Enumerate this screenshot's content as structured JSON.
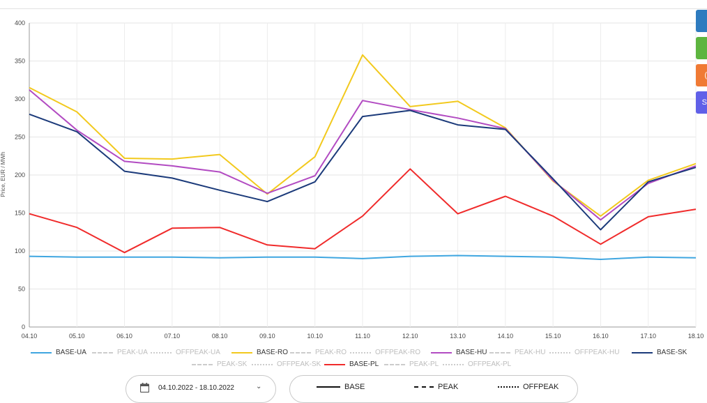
{
  "chart_data": {
    "type": "line",
    "ylabel": "Price, EUR / MWh",
    "ylim": [
      0,
      400
    ],
    "yticks": [
      0,
      50,
      100,
      150,
      200,
      250,
      300,
      350,
      400
    ],
    "categories": [
      "04.10",
      "05.10",
      "06.10",
      "07.10",
      "08.10",
      "09.10",
      "10.10",
      "11.10",
      "12.10",
      "13.10",
      "14.10",
      "15.10",
      "16.10",
      "17.10",
      "18.10"
    ],
    "grid": true,
    "legend_position": "bottom",
    "series": [
      {
        "name": "BASE-UA",
        "color": "#3fa6e0",
        "values": [
          93,
          92,
          92,
          92,
          91,
          92,
          92,
          90,
          93,
          94,
          93,
          92,
          89,
          92,
          91
        ]
      },
      {
        "name": "BASE-RO",
        "color": "#f2c91d",
        "values": [
          315,
          283,
          222,
          221,
          227,
          175,
          224,
          358,
          290,
          297,
          262,
          192,
          146,
          193,
          215
        ]
      },
      {
        "name": "BASE-HU",
        "color": "#b24bc2",
        "values": [
          312,
          259,
          218,
          212,
          204,
          176,
          199,
          298,
          286,
          275,
          261,
          193,
          141,
          189,
          212
        ]
      },
      {
        "name": "BASE-SK",
        "color": "#1b3a7a",
        "values": [
          280,
          257,
          205,
          196,
          180,
          165,
          191,
          277,
          285,
          266,
          260,
          195,
          128,
          191,
          210
        ]
      },
      {
        "name": "BASE-PL",
        "color": "#f02b2b",
        "values": [
          149,
          131,
          98,
          130,
          131,
          108,
          103,
          146,
          208,
          149,
          172,
          146,
          109,
          145,
          155
        ]
      }
    ]
  },
  "legend": {
    "row1": [
      {
        "label": "BASE-UA",
        "color": "#3fa6e0",
        "style": "solid",
        "active": true
      },
      {
        "label": "PEAK-UA",
        "color": "#cccccc",
        "style": "dashed",
        "active": false
      },
      {
        "label": "OFFPEAK-UA",
        "color": "#cccccc",
        "style": "dotted",
        "active": false
      },
      {
        "label": "BASE-RO",
        "color": "#f2c91d",
        "style": "solid",
        "active": true
      },
      {
        "label": "PEAK-RO",
        "color": "#cccccc",
        "style": "dashed",
        "active": false
      },
      {
        "label": "OFFPEAK-RO",
        "color": "#cccccc",
        "style": "dotted",
        "active": false
      },
      {
        "label": "BASE-HU",
        "color": "#b24bc2",
        "style": "solid",
        "active": true
      },
      {
        "label": "PEAK-HU",
        "color": "#cccccc",
        "style": "dashed",
        "active": false
      },
      {
        "label": "OFFPEAK-HU",
        "color": "#cccccc",
        "style": "dotted",
        "active": false
      },
      {
        "label": "BASE-SK",
        "color": "#1b3a7a",
        "style": "solid",
        "active": true
      }
    ],
    "row2": [
      {
        "label": "PEAK-SK",
        "color": "#cccccc",
        "style": "dashed",
        "active": false
      },
      {
        "label": "OFFPEAK-SK",
        "color": "#cccccc",
        "style": "dotted",
        "active": false
      },
      {
        "label": "BASE-PL",
        "color": "#f02b2b",
        "style": "solid",
        "active": true
      },
      {
        "label": "PEAK-PL",
        "color": "#cccccc",
        "style": "dashed",
        "active": false
      },
      {
        "label": "OFFPEAK-PL",
        "color": "#cccccc",
        "style": "dotted",
        "active": false
      }
    ]
  },
  "side_buttons": [
    {
      "color": "#2e7bbf",
      "label": ""
    },
    {
      "color": "#5db53f",
      "label": ""
    },
    {
      "color": "#f07a34",
      "label": "("
    },
    {
      "color": "#6060e8",
      "label": "S"
    }
  ],
  "controls": {
    "date_range": "04.10.2022 - 18.10.2022",
    "chevron": "⌄",
    "line_styles": [
      {
        "label": "BASE",
        "style": "solid"
      },
      {
        "label": "PEAK",
        "style": "dashed"
      },
      {
        "label": "OFFPEAK",
        "style": "dotted"
      }
    ]
  }
}
